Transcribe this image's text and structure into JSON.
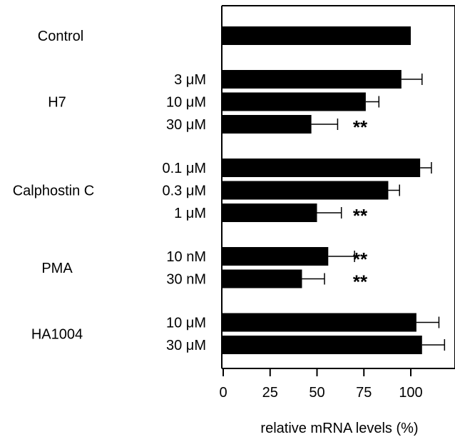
{
  "chart_data": {
    "type": "bar",
    "orientation": "horizontal",
    "xlabel": "relative mRNA levels (%)",
    "xlim": [
      0,
      125
    ],
    "xticks": [
      0,
      25,
      50,
      75,
      100
    ],
    "grid": false,
    "bar_color": "#000000",
    "groups": [
      {
        "name": "Control",
        "bars": [
          {
            "label": "",
            "value": 100,
            "error": null,
            "significance": ""
          }
        ]
      },
      {
        "name": "H7",
        "bars": [
          {
            "label": "3 μM",
            "value": 95,
            "error": 11,
            "significance": ""
          },
          {
            "label": "10 μM",
            "value": 76,
            "error": 7,
            "significance": ""
          },
          {
            "label": "30 μM",
            "value": 47,
            "error": 14,
            "significance": "**"
          }
        ]
      },
      {
        "name": "Calphostin C",
        "bars": [
          {
            "label": "0.1 μM",
            "value": 105,
            "error": 6,
            "significance": ""
          },
          {
            "label": "0.3 μM",
            "value": 88,
            "error": 6,
            "significance": ""
          },
          {
            "label": "1 μM",
            "value": 50,
            "error": 13,
            "significance": "**"
          }
        ]
      },
      {
        "name": "PMA",
        "bars": [
          {
            "label": "10 nM",
            "value": 56,
            "error": 14,
            "significance": "**"
          },
          {
            "label": "30 nM",
            "value": 42,
            "error": 12,
            "significance": "**"
          }
        ]
      },
      {
        "name": "HA1004",
        "bars": [
          {
            "label": "10 μM",
            "value": 103,
            "error": 12,
            "significance": ""
          },
          {
            "label": "30 μM",
            "value": 106,
            "error": 12,
            "significance": ""
          }
        ]
      }
    ]
  }
}
